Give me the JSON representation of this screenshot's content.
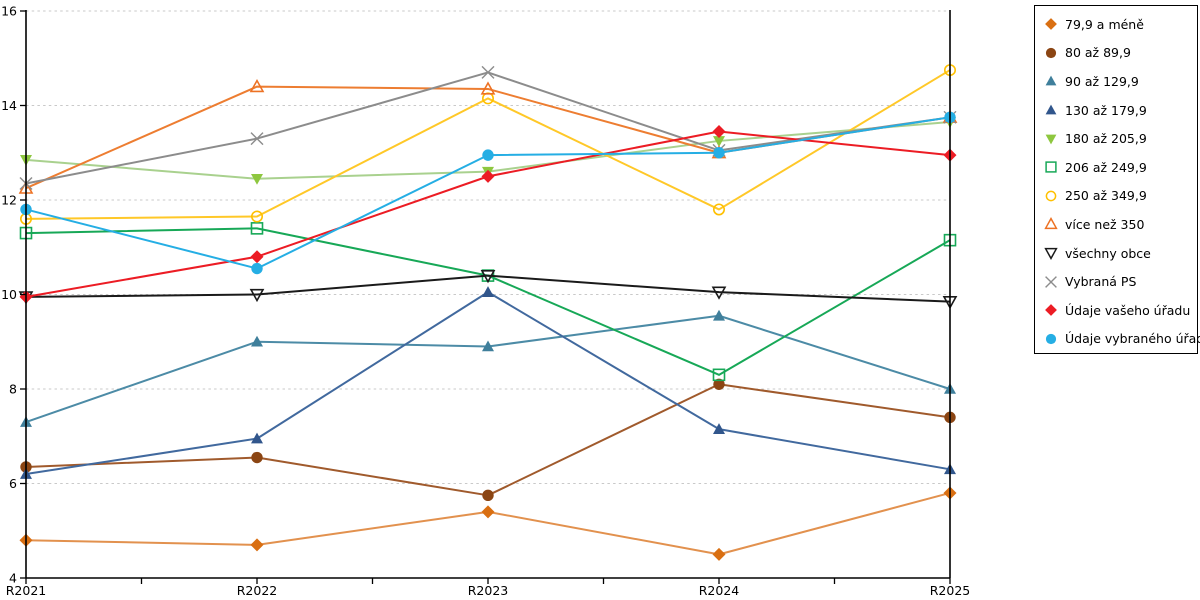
{
  "chart": {
    "background": "#FFFFFF",
    "axis_color": "#000000",
    "grid_color": "#C9C9C9",
    "tick_label_color": "#000000",
    "legend_border_color": "#000000"
  },
  "chart_data": {
    "type": "line",
    "title": "",
    "xlabel": "",
    "ylabel": "",
    "categories": [
      "R2021",
      "R2022",
      "R2023",
      "R2024",
      "R2025"
    ],
    "ylim": [
      4,
      16
    ],
    "yticks": [
      4,
      6,
      8,
      10,
      12,
      14,
      16
    ],
    "grid": "horizontal-dashed",
    "legend_position": "right-outside",
    "series": [
      {
        "name": "79,9 a méně",
        "marker": "diamond-filled",
        "color": "#D96F12",
        "line_color": "#E2914E",
        "values": [
          4.8,
          4.7,
          5.4,
          4.5,
          5.8
        ]
      },
      {
        "name": "80 až 89,9",
        "marker": "circle-filled",
        "color": "#8B4513",
        "line_color": "#A05A2C",
        "values": [
          6.35,
          6.55,
          5.75,
          8.1,
          7.4
        ]
      },
      {
        "name": "90 až 129,9",
        "marker": "triangle-up-filled",
        "color": "#3F7F9B",
        "line_color": "#4C8BA6",
        "values": [
          7.3,
          9.0,
          8.9,
          9.55,
          8.0
        ]
      },
      {
        "name": "130 až 179,9",
        "marker": "triangle-up-filled",
        "color": "#31568C",
        "line_color": "#41699E",
        "values": [
          6.2,
          6.95,
          10.05,
          7.15,
          6.3
        ]
      },
      {
        "name": "180 až 205,9",
        "marker": "triangle-down-filled",
        "color": "#8EC73F",
        "line_color": "#A9D18E",
        "values": [
          12.85,
          12.45,
          12.6,
          13.25,
          13.65
        ]
      },
      {
        "name": "206 až 249,9",
        "marker": "square-outline",
        "color": "#17A857",
        "line_color": "#17A857",
        "values": [
          11.3,
          11.4,
          10.4,
          8.3,
          11.15
        ]
      },
      {
        "name": "250 až 349,9",
        "marker": "circle-outline",
        "color": "#FFC000",
        "line_color": "#FFC828",
        "values": [
          11.6,
          11.65,
          14.15,
          11.8,
          14.75
        ]
      },
      {
        "name": "více než 350",
        "marker": "triangle-up-outline",
        "color": "#ED7224",
        "line_color": "#ED7D31",
        "values": [
          12.25,
          14.4,
          14.35,
          13.0,
          13.75
        ]
      },
      {
        "name": "všechny obce",
        "marker": "triangle-down-outline",
        "color": "#1A1A1A",
        "line_color": "#1A1A1A",
        "values": [
          9.95,
          10.0,
          10.4,
          10.05,
          9.85
        ]
      },
      {
        "name": "Vybraná PS",
        "marker": "x",
        "color": "#8C8C8C",
        "line_color": "#8C8C8C",
        "values": [
          12.35,
          13.3,
          14.7,
          13.05,
          13.75
        ]
      },
      {
        "name": "Údaje vašeho úřadu",
        "marker": "diamond-filled",
        "color": "#EC1C24",
        "line_color": "#EC1C24",
        "values": [
          9.95,
          10.8,
          12.5,
          13.45,
          12.95
        ]
      },
      {
        "name": "Údaje vybraného úřadu",
        "marker": "circle-filled",
        "color": "#25AEE4",
        "line_color": "#25AEE4",
        "values": [
          11.8,
          10.55,
          12.95,
          13.0,
          13.75
        ]
      }
    ]
  }
}
